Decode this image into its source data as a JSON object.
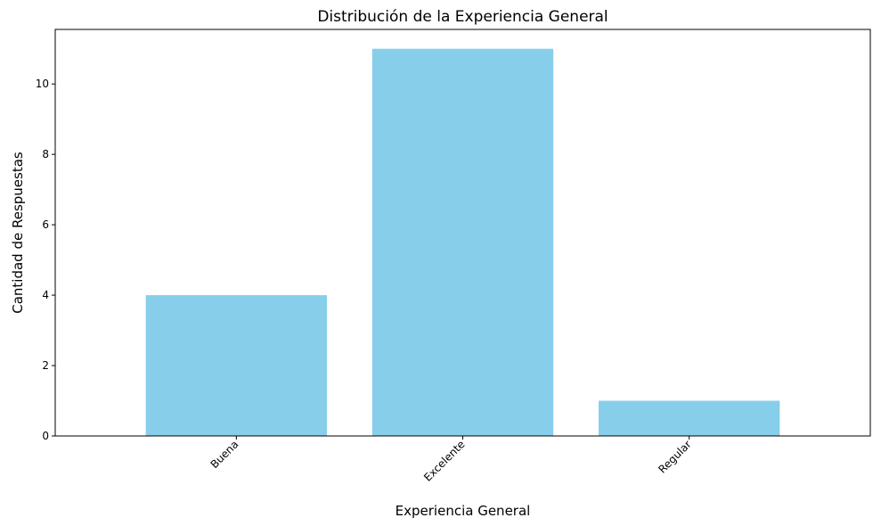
{
  "chart_data": {
    "type": "bar",
    "title": "Distribución de la Experiencia General",
    "xlabel": "Experiencia General",
    "ylabel": "Cantidad de Respuestas",
    "categories": [
      "Buena",
      "Excelente",
      "Regular"
    ],
    "values": [
      4,
      11,
      1
    ],
    "ylim": [
      0,
      11.55
    ],
    "yticks": [
      0,
      2,
      4,
      6,
      8,
      10
    ],
    "bar_color": "#87CEEB",
    "grid": false,
    "legend": "none"
  }
}
